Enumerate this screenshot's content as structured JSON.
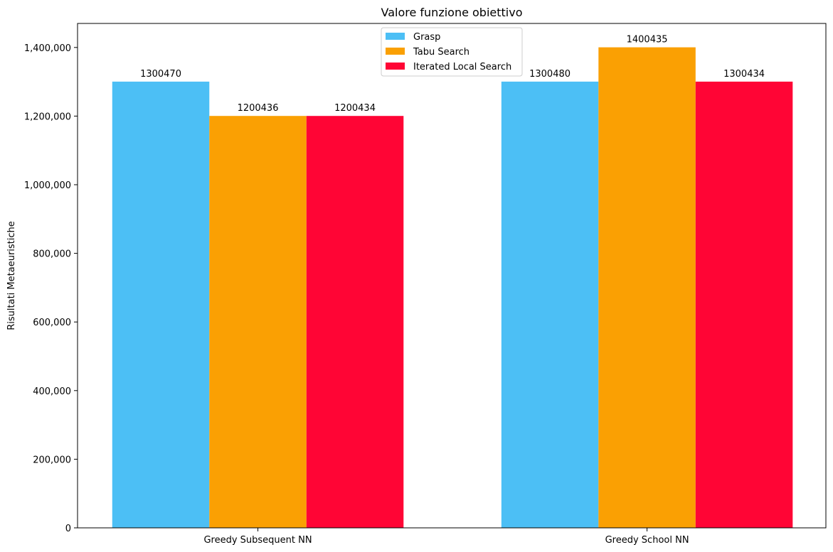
{
  "chart_data": {
    "type": "bar",
    "title": "Valore funzione obiettivo",
    "xlabel": "",
    "ylabel": "Risultati Metaeuristiche",
    "categories": [
      "Greedy Subsequent NN",
      "Greedy School NN"
    ],
    "series": [
      {
        "name": "Grasp",
        "color": "#4cbff5",
        "values": [
          1300470,
          1300480
        ]
      },
      {
        "name": "Tabu Search",
        "color": "#faa003",
        "values": [
          1200436,
          1400435
        ]
      },
      {
        "name": "Iterated Local Search",
        "color": "#ff0535",
        "values": [
          1200434,
          1300434
        ]
      }
    ],
    "ylim": [
      0,
      1470000
    ],
    "yticks": [
      0,
      200000,
      400000,
      600000,
      800000,
      1000000,
      1200000,
      1400000
    ],
    "ytick_labels": [
      "0",
      "200,000",
      "400,000",
      "600,000",
      "800,000",
      "1,000,000",
      "1,200,000",
      "1,400,000"
    ],
    "data_labels": [
      [
        "1300470",
        "1300480"
      ],
      [
        "1200436",
        "1400435"
      ],
      [
        "1200434",
        "1300434"
      ]
    ],
    "legend_position": "upper-center",
    "grid": false
  }
}
